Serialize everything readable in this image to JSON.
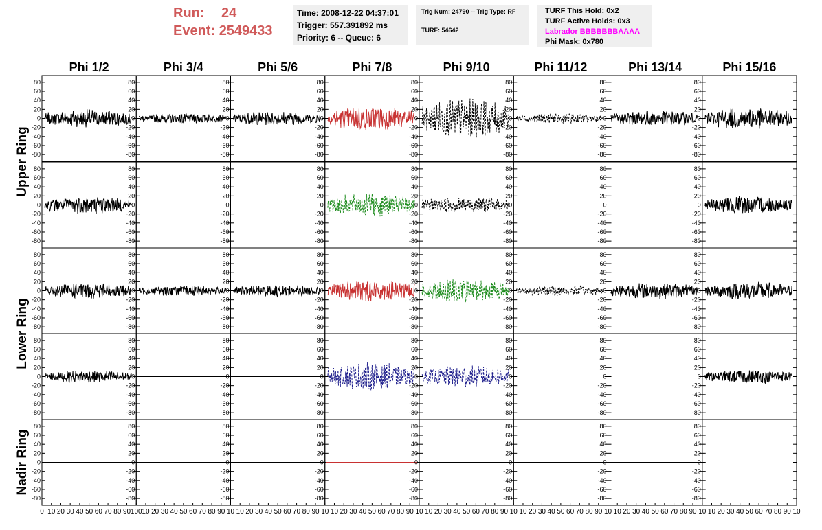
{
  "header": {
    "run_label": "Run:",
    "run_value": "24",
    "event_label": "Event:",
    "event_value": "2549433",
    "time_line": "Time: 2008-12-22 04:37:01",
    "trigger_line": "Trigger: 557.391892 ms",
    "priority_line": "Priority: 6 -- Queue: 6",
    "trig_line": "Trig Num: 24790 -- Trig Type: RF",
    "turf_line": "TURF: 54642",
    "turf_hold_line": "TURF This Hold: 0x2",
    "turf_active_line": "TURF Active Holds: 0x3",
    "labrador_line": "Labrador BBBBBBBAAAA",
    "phi_mask_line": "Phi Mask: 0x780",
    "colors": {
      "run": "#d05a5a",
      "labrador": "#ff00ff",
      "box_bg": "#efefef"
    }
  },
  "chart_data": {
    "type": "line",
    "columns": [
      "Phi 1/2",
      "Phi 3/4",
      "Phi 5/6",
      "Phi 7/8",
      "Phi 9/10",
      "Phi 11/12",
      "Phi 13/14",
      "Phi 15/16"
    ],
    "ring_labels": [
      {
        "text": "Upper Ring",
        "rows": [
          0,
          1
        ]
      },
      {
        "text": "Lower Ring",
        "rows": [
          2,
          3
        ]
      },
      {
        "text": "Nadir Ring",
        "rows": [
          4,
          4
        ]
      }
    ],
    "ylim": [
      -95,
      95
    ],
    "xlim": [
      0,
      100
    ],
    "y_ticks": [
      -80,
      -60,
      -40,
      -20,
      0,
      20,
      40,
      60,
      80
    ],
    "x_tick_labels_first": [
      "0",
      "10",
      "20",
      "30",
      "40",
      "50",
      "60",
      "70",
      "80",
      "90",
      "100"
    ],
    "x_tick_labels_repeat": [
      "10",
      "20",
      "30",
      "40",
      "50",
      "60",
      "70",
      "80",
      "90",
      "10"
    ],
    "grid": false,
    "legend": "none",
    "colors": {
      "black": "#000000",
      "red": "#c83232",
      "green": "#1e8c1e",
      "blue": "#1e1e8c"
    },
    "rows": [
      [
        {
          "style": "solid",
          "color": "black",
          "amp": 18
        },
        {
          "style": "solid",
          "color": "black",
          "amp": 10
        },
        {
          "style": "solid",
          "color": "black",
          "amp": 14
        },
        {
          "style": "solid",
          "color": "red",
          "amp": 24
        },
        {
          "style": "dashed",
          "color": "black",
          "amp": 40
        },
        {
          "style": "dashed",
          "color": "black",
          "amp": 10
        },
        {
          "style": "solid",
          "color": "black",
          "amp": 16
        },
        {
          "style": "solid",
          "color": "black",
          "amp": 22
        }
      ],
      [
        {
          "style": "solid",
          "color": "black",
          "amp": 18
        },
        {
          "style": "flat",
          "color": "black",
          "amp": 0
        },
        {
          "style": "flat",
          "color": "black",
          "amp": 0
        },
        {
          "style": "dashed",
          "color": "green",
          "amp": 24
        },
        {
          "style": "dashed",
          "color": "black",
          "amp": 16
        },
        {
          "style": "none",
          "color": "black",
          "amp": 0
        },
        {
          "style": "none",
          "color": "black",
          "amp": 0
        },
        {
          "style": "solid",
          "color": "black",
          "amp": 18
        }
      ],
      [
        {
          "style": "solid",
          "color": "black",
          "amp": 16
        },
        {
          "style": "solid",
          "color": "black",
          "amp": 10
        },
        {
          "style": "solid",
          "color": "black",
          "amp": 12
        },
        {
          "style": "solid",
          "color": "red",
          "amp": 22
        },
        {
          "style": "dashed",
          "color": "green",
          "amp": 24
        },
        {
          "style": "dashed",
          "color": "black",
          "amp": 10
        },
        {
          "style": "solid",
          "color": "black",
          "amp": 16
        },
        {
          "style": "solid",
          "color": "black",
          "amp": 18
        }
      ],
      [
        {
          "style": "solid",
          "color": "black",
          "amp": 12
        },
        {
          "style": "flat",
          "color": "black",
          "amp": 0
        },
        {
          "style": "flat",
          "color": "black",
          "amp": 0
        },
        {
          "style": "dashed",
          "color": "blue",
          "amp": 28
        },
        {
          "style": "dashed",
          "color": "blue",
          "amp": 22
        },
        {
          "style": "none",
          "color": "black",
          "amp": 0
        },
        {
          "style": "none",
          "color": "black",
          "amp": 0
        },
        {
          "style": "solid",
          "color": "black",
          "amp": 14
        }
      ],
      [
        {
          "style": "flat",
          "color": "black",
          "amp": 0
        },
        {
          "style": "flat",
          "color": "black",
          "amp": 0
        },
        {
          "style": "flat",
          "color": "black",
          "amp": 0
        },
        {
          "style": "flat",
          "color": "red",
          "amp": 0
        },
        {
          "style": "flat",
          "color": "black",
          "amp": 0
        },
        {
          "style": "flat",
          "color": "black",
          "amp": 0
        },
        {
          "style": "flat",
          "color": "black",
          "amp": 0
        },
        {
          "style": "none",
          "color": "black",
          "amp": 0
        }
      ]
    ]
  }
}
